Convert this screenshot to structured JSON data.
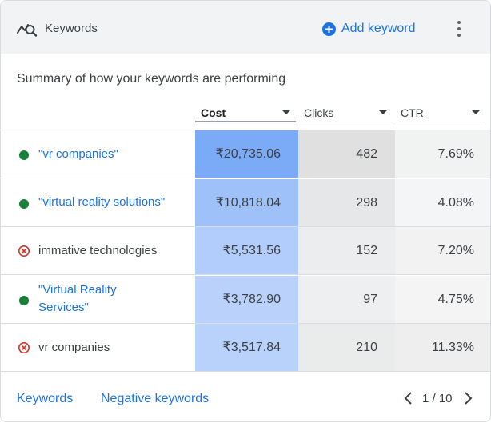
{
  "header": {
    "icon": "keyword-planner-icon",
    "title": "Keywords",
    "add_label": "Add keyword",
    "add_icon": "plus-circle-icon",
    "more_icon": "more-vert-icon"
  },
  "subtitle": "Summary of how your keywords are performing",
  "columns": [
    {
      "label": "Cost",
      "active": true
    },
    {
      "label": "Clicks",
      "active": false
    },
    {
      "label": "CTR",
      "active": false
    }
  ],
  "rows": [
    {
      "keyword": "\"vr companies\"",
      "status": "enabled",
      "cost": "₹20,735.06",
      "cost_share": 1.0,
      "clicks": "482",
      "clicks_share": 1.0,
      "ctr": "7.69%",
      "ctr_share": 0.68
    },
    {
      "keyword": "\"virtual reality solutions\"",
      "status": "enabled",
      "cost": "₹10,818.04",
      "cost_share": 0.52,
      "clicks": "298",
      "clicks_share": 0.62,
      "ctr": "4.08%",
      "ctr_share": 0.36
    },
    {
      "keyword": "immative technologies",
      "status": "negative",
      "cost": "₹5,531.56",
      "cost_share": 0.27,
      "clicks": "152",
      "clicks_share": 0.32,
      "ctr": "7.20%",
      "ctr_share": 0.64
    },
    {
      "keyword": "\"Virtual Reality Services\"",
      "status": "enabled",
      "cost": "₹3,782.90",
      "cost_share": 0.18,
      "clicks": "97",
      "clicks_share": 0.2,
      "ctr": "4.75%",
      "ctr_share": 0.42
    },
    {
      "keyword": "vr companies",
      "status": "negative",
      "cost": "₹3,517.84",
      "cost_share": 0.17,
      "clicks": "210",
      "clicks_share": 0.44,
      "ctr": "11.33%",
      "ctr_share": 1.0
    }
  ],
  "footer": {
    "keywords_link": "Keywords",
    "negative_link": "Negative keywords",
    "pager": "1 / 10",
    "prev_icon": "chevron-left-icon",
    "next_icon": "chevron-right-icon"
  },
  "colors": {
    "enabled": "#188038",
    "negative": "#d93025",
    "link": "#1a73e8",
    "cost_heat": [
      "#c6dafc",
      "#7baaf7"
    ],
    "clicks_heat": [
      "#f1f3f4",
      "#e0e0e0"
    ],
    "ctr_heat": [
      "#f8f9fa",
      "#eeeeee"
    ]
  }
}
